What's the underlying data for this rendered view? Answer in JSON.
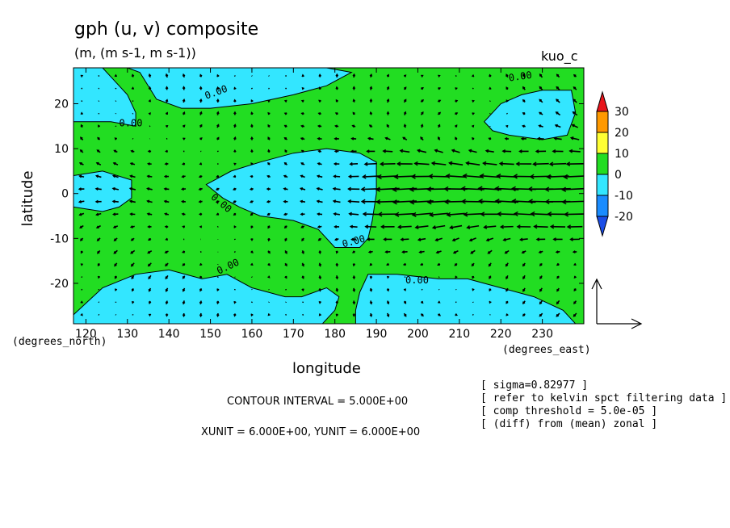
{
  "header": {
    "title": "gph (u, v) composite",
    "units": "(m, (m s-1, m s-1))",
    "case_label": "kuo_c"
  },
  "footer": {
    "contour_interval": "CONTOUR INTERVAL = 5.000E+00",
    "vector_units": "XUNIT = 6.000E+00, YUNIT = 6.000E+00",
    "notes": [
      "[ sigma=0.82977 ]",
      "[ refer to kelvin spct filtering data ]",
      "[ comp threshold = 5.0e-05 ]",
      "[ (diff) from (mean) zonal ]"
    ]
  },
  "chart_data": {
    "type": "contour-vector",
    "xlabel": "longitude",
    "ylabel": "latitude",
    "x_unit": "(degrees_east)",
    "y_unit": "(degrees_north)",
    "xlim": [
      117,
      240
    ],
    "ylim": [
      -29,
      28
    ],
    "x_ticks": [
      120,
      130,
      140,
      150,
      160,
      170,
      180,
      190,
      200,
      210,
      220,
      230
    ],
    "y_ticks": [
      20,
      10,
      0,
      -10,
      -20
    ],
    "contour_labels": [
      "0.00",
      "0.00",
      "0.00",
      "0.00",
      "0.00",
      "0.00",
      "0.00"
    ],
    "colorbar": {
      "levels": [
        "30",
        "20",
        "10",
        "0",
        "-10",
        "-20"
      ],
      "colors": [
        "#e8141b",
        "#ff9900",
        "#ffff33",
        "#22dd22",
        "#33e6ff",
        "#1a8cff",
        "#1a4de6"
      ]
    },
    "fill_colors": {
      "positive": "#22dd22",
      "negative": "#33e6ff"
    },
    "negative_regions": [
      {
        "name": "north-central",
        "polygon": [
          [
            125,
            28
          ],
          [
            148,
            28
          ],
          [
            165,
            28
          ],
          [
            178,
            28
          ],
          [
            184,
            27
          ],
          [
            178,
            24
          ],
          [
            170,
            22
          ],
          [
            160,
            20
          ],
          [
            150,
            19
          ],
          [
            143,
            19
          ],
          [
            137,
            21
          ],
          [
            135,
            24
          ],
          [
            133,
            27
          ],
          [
            130,
            28
          ]
        ]
      },
      {
        "name": "northwest-corner",
        "polygon": [
          [
            117,
            16
          ],
          [
            121,
            16
          ],
          [
            126,
            16
          ],
          [
            132,
            15
          ],
          [
            132,
            18
          ],
          [
            130,
            22
          ],
          [
            127,
            25
          ],
          [
            124,
            28
          ],
          [
            117,
            28
          ]
        ]
      },
      {
        "name": "northeast",
        "polygon": [
          [
            216,
            16
          ],
          [
            220,
            20
          ],
          [
            225,
            22
          ],
          [
            230,
            23
          ],
          [
            237,
            23
          ],
          [
            238,
            18
          ],
          [
            236,
            13
          ],
          [
            230,
            12
          ],
          [
            222,
            13
          ],
          [
            218,
            14
          ]
        ]
      },
      {
        "name": "equatorial-central",
        "polygon": [
          [
            149,
            2
          ],
          [
            155,
            5
          ],
          [
            162,
            7
          ],
          [
            170,
            9
          ],
          [
            178,
            10
          ],
          [
            186,
            9
          ],
          [
            190,
            7
          ],
          [
            190,
            0
          ],
          [
            189,
            -6
          ],
          [
            188,
            -10
          ],
          [
            186,
            -12
          ],
          [
            180,
            -12
          ],
          [
            176,
            -8
          ],
          [
            170,
            -6
          ],
          [
            162,
            -5
          ],
          [
            157,
            -3
          ],
          [
            153,
            -1
          ]
        ]
      },
      {
        "name": "west-equatorial",
        "polygon": [
          [
            117,
            4
          ],
          [
            124,
            5
          ],
          [
            131,
            3
          ],
          [
            131,
            -1
          ],
          [
            128,
            -3
          ],
          [
            124,
            -4
          ],
          [
            117,
            -3
          ]
        ]
      },
      {
        "name": "southwest",
        "polygon": [
          [
            117,
            -29
          ],
          [
            117,
            -27
          ],
          [
            124,
            -21
          ],
          [
            132,
            -18
          ],
          [
            140,
            -17
          ],
          [
            148,
            -19
          ],
          [
            154,
            -18
          ],
          [
            160,
            -21
          ],
          [
            168,
            -23
          ],
          [
            172,
            -23
          ],
          [
            178,
            -21
          ],
          [
            181,
            -23
          ],
          [
            180,
            -26
          ],
          [
            177,
            -29
          ]
        ]
      },
      {
        "name": "southeast",
        "polygon": [
          [
            185,
            -29
          ],
          [
            185,
            -26
          ],
          [
            186,
            -22
          ],
          [
            188,
            -18
          ],
          [
            195,
            -18
          ],
          [
            205,
            -19
          ],
          [
            212,
            -19
          ],
          [
            220,
            -21
          ],
          [
            228,
            -23
          ],
          [
            235,
            -26
          ],
          [
            238,
            -29
          ]
        ]
      }
    ],
    "wind_field": "vector arrows on a regular lon-lat grid; strong westward flow (u up to about -12 m/s) centred on the equator east of 185E, weak westward flow elsewhere near the equator, weak poleward/eastward flow at higher latitudes"
  }
}
